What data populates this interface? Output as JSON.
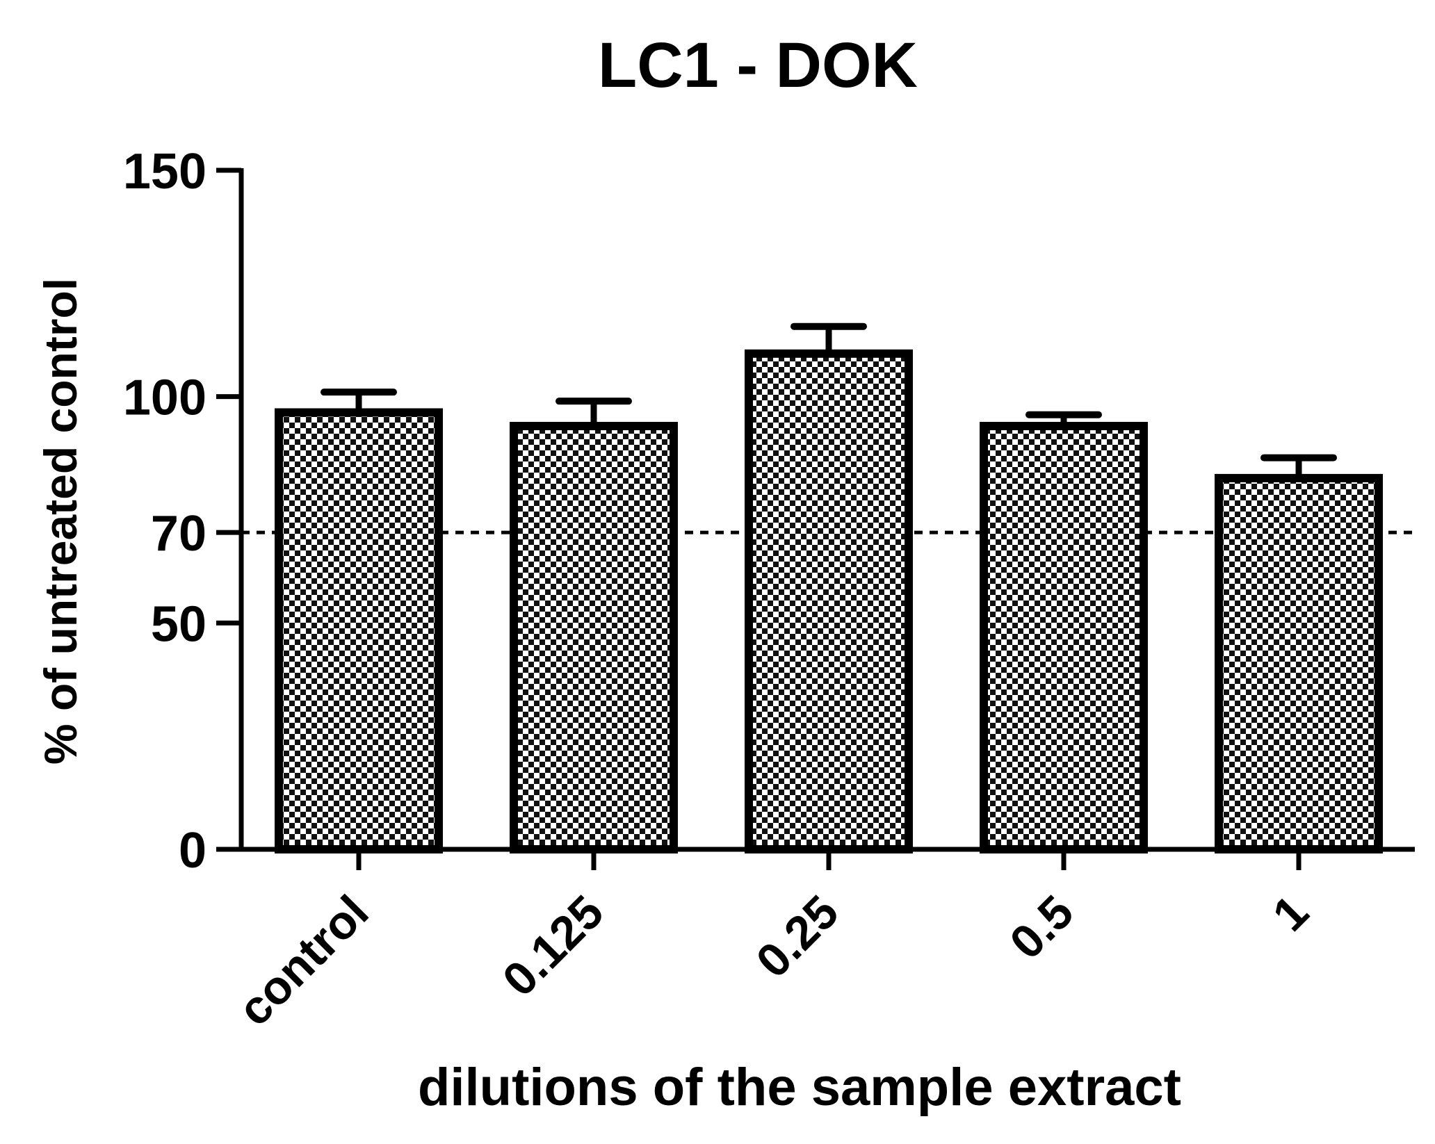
{
  "chart_data": {
    "type": "bar",
    "title": "LC1 - DOK",
    "xlabel": "dilutions of the sample extract",
    "ylabel": "% of untreated control",
    "categories": [
      "control",
      "0.125",
      "0.25",
      "0.5",
      "1"
    ],
    "values": [
      96.5,
      93.5,
      109.5,
      93.5,
      82
    ],
    "errors": [
      4.5,
      5.5,
      6,
      2.5,
      4.5
    ],
    "ylim": [
      0,
      150
    ],
    "yticks": [
      0,
      50,
      70,
      100,
      150
    ],
    "reference_line": 70,
    "bar_fill": "checkerboard",
    "colors": {
      "bar_stroke": "#000000",
      "axis": "#000000",
      "background": "#ffffff"
    }
  }
}
